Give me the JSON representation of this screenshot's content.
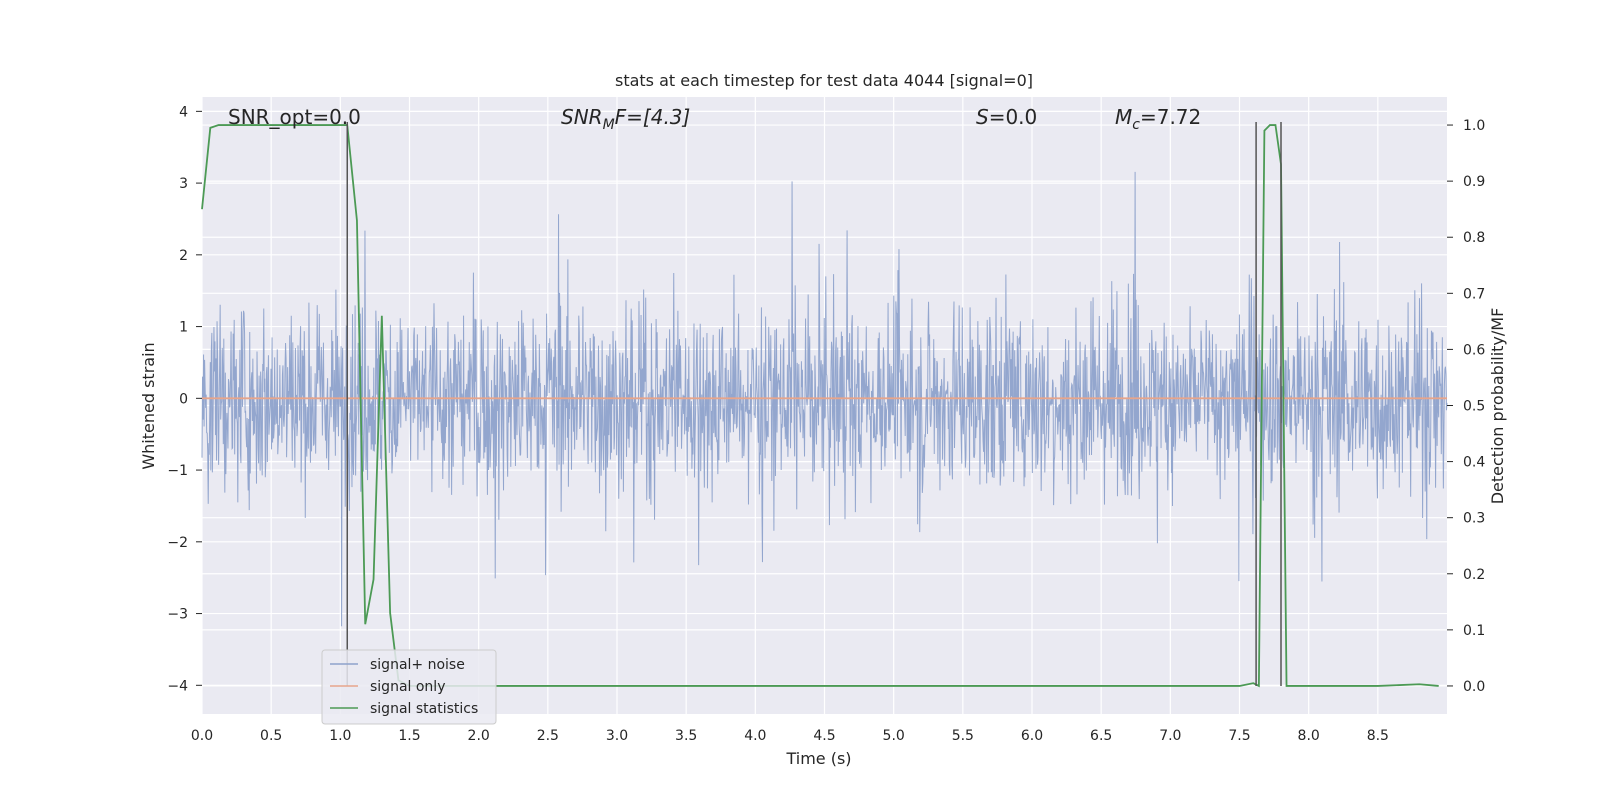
{
  "chart_data": {
    "type": "line",
    "title": "stats at each timestep for test data 4044 [signal=0]",
    "xlabel": "Time (s)",
    "ylabel": "Whitened strain",
    "ylabel_right": "Detection probability/MF",
    "xlim": [
      0.0,
      9.0
    ],
    "ylim": [
      -4.4,
      4.2
    ],
    "ylim_right": [
      -0.05,
      1.05
    ],
    "x_ticks": [
      "0.0",
      "0.5",
      "1.0",
      "1.5",
      "2.0",
      "2.5",
      "3.0",
      "3.5",
      "4.0",
      "4.5",
      "5.0",
      "5.5",
      "6.0",
      "6.5",
      "7.0",
      "7.5",
      "8.0",
      "8.5"
    ],
    "y_ticks": [
      "4",
      "3",
      "2",
      "1",
      "0",
      "−1",
      "−2",
      "−3",
      "−4"
    ],
    "y_ticks_right": [
      "1.0",
      "0.9",
      "0.8",
      "0.7",
      "0.6",
      "0.5",
      "0.4",
      "0.3",
      "0.2",
      "0.1",
      "0.0"
    ],
    "grid": true,
    "legend_position": "lower-left",
    "annotations": {
      "snr_opt": "SNR_opt=0.0",
      "snr_mf_main": "SNR",
      "snr_mf_sub": "M",
      "snr_mf_rest": "F=[4.3]",
      "s_main": "S",
      "s_rest": "=0.0",
      "mc_main": "M",
      "mc_sub": "c",
      "mc_rest": "=7.72"
    },
    "series": [
      {
        "name": "signal+ noise",
        "color": "#8ea2cb",
        "note_data": "dense noise trace, approx Gaussian envelope ±1.5 with spikes to ±3.9 over 0–9 s",
        "envelope": {
          "typical": 1.6,
          "max": 3.9,
          "min": -4.0
        }
      },
      {
        "name": "signal only",
        "color": "#e7a58b",
        "x": [
          0.0,
          9.0
        ],
        "y": [
          0.0,
          0.0
        ]
      },
      {
        "name": "signal statistics",
        "color": "#4c9a55",
        "axis": "right",
        "x": [
          0.0,
          0.06,
          0.12,
          0.2,
          0.5,
          0.8,
          1.0,
          1.05,
          1.12,
          1.18,
          1.24,
          1.3,
          1.36,
          1.42,
          1.5,
          2.0,
          4.0,
          6.0,
          7.5,
          7.6,
          7.64,
          7.68,
          7.72,
          7.76,
          7.8,
          7.84,
          7.88,
          7.94,
          8.0,
          8.5,
          8.8,
          8.94
        ],
        "y": [
          0.85,
          0.995,
          1.0,
          1.0,
          1.0,
          1.0,
          1.0,
          1.0,
          0.83,
          0.11,
          0.19,
          0.66,
          0.13,
          0.01,
          0.0,
          0.0,
          0.0,
          0.0,
          0.0,
          0.005,
          0.0,
          0.99,
          1.0,
          1.0,
          0.93,
          0.0,
          0.0,
          0.0,
          0.0,
          0.0,
          0.003,
          0.0
        ]
      }
    ],
    "vertical_markers": [
      1.05,
      7.62,
      7.8
    ]
  }
}
